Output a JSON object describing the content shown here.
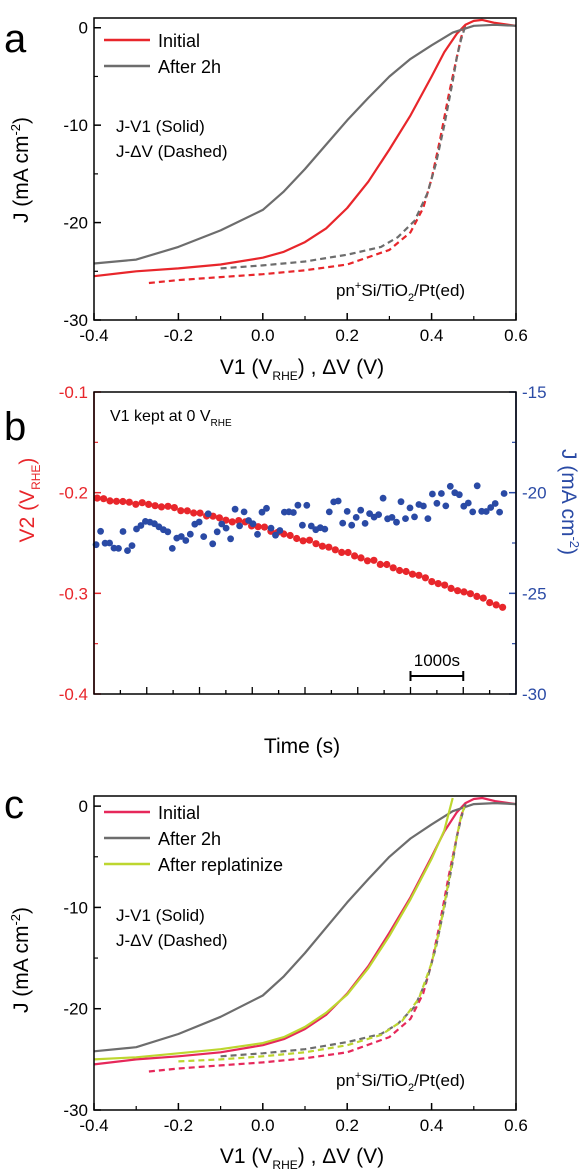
{
  "colors": {
    "red": "#e8262b",
    "gray": "#6d6d6d",
    "blue": "#2a4aa5",
    "pink": "#e6285a",
    "lime": "#bdd62f"
  },
  "chart_data": [
    {
      "type": "line",
      "panel_letter": "a",
      "xlabel": {
        "main": "V1 (V",
        "sub": "RHE",
        "tail": ") , ΔV (V)"
      },
      "ylabel": {
        "main": "J (mA cm",
        "sup": "-2",
        "tail": ")"
      },
      "xlim": [
        -0.4,
        0.6
      ],
      "ylim": [
        -30,
        1
      ],
      "xticks": [
        "-0.4",
        "-0.2",
        "0.0",
        "0.2",
        "0.4",
        "0.6"
      ],
      "yticks": [
        "-30",
        "-20",
        "-10",
        "0"
      ],
      "xtick_values": [
        -0.4,
        -0.2,
        0.0,
        0.2,
        0.4,
        0.6
      ],
      "ytick_values": [
        -30,
        -20,
        -10,
        0
      ],
      "legend": {
        "placement": "top-left",
        "entries": [
          {
            "label": "Initial",
            "color": "#e8262b"
          },
          {
            "label": "After 2h",
            "color": "#6d6d6d"
          }
        ]
      },
      "annotations": [
        "J-V1 (Solid)",
        "J-ΔV (Dashed)"
      ],
      "sample_label": {
        "main": "pn",
        "sup": "+",
        "mid": "Si/TiO",
        "sub": "2",
        "tail": "/Pt(ed)"
      },
      "series": [
        {
          "name": "Initial",
          "style": "solid",
          "color": "#e8262b",
          "x": [
            -0.4,
            -0.3,
            -0.2,
            -0.1,
            0.0,
            0.05,
            0.1,
            0.15,
            0.2,
            0.25,
            0.3,
            0.35,
            0.4,
            0.43,
            0.46,
            0.48,
            0.5,
            0.52,
            0.55,
            0.6
          ],
          "y": [
            -25.5,
            -25.0,
            -24.7,
            -24.3,
            -23.6,
            -23.0,
            -22.0,
            -20.6,
            -18.5,
            -15.8,
            -12.5,
            -9.0,
            -5.0,
            -2.5,
            -0.6,
            0.3,
            0.7,
            0.8,
            0.5,
            0.2
          ]
        },
        {
          "name": "After 2h",
          "style": "solid",
          "color": "#6d6d6d",
          "x": [
            -0.4,
            -0.3,
            -0.2,
            -0.1,
            0.0,
            0.05,
            0.1,
            0.15,
            0.2,
            0.25,
            0.3,
            0.35,
            0.4,
            0.45,
            0.5,
            0.55,
            0.6
          ],
          "y": [
            -24.2,
            -23.8,
            -22.5,
            -20.8,
            -18.7,
            -16.8,
            -14.5,
            -12.0,
            -9.5,
            -7.2,
            -5.0,
            -3.2,
            -1.8,
            -0.5,
            0.2,
            0.3,
            0.2
          ]
        },
        {
          "name": "Initial",
          "style": "dashed",
          "color": "#e8262b",
          "x": [
            -0.27,
            -0.2,
            -0.1,
            0.0,
            0.1,
            0.2,
            0.3,
            0.35,
            0.38,
            0.4,
            0.42,
            0.44,
            0.46,
            0.47,
            0.48
          ],
          "y": [
            -26.2,
            -25.9,
            -25.6,
            -25.3,
            -24.9,
            -24.3,
            -22.8,
            -21.0,
            -18.5,
            -15.5,
            -11.5,
            -7.0,
            -3.0,
            -1.0,
            0.3
          ]
        },
        {
          "name": "After 2h",
          "style": "dashed",
          "color": "#6d6d6d",
          "x": [
            -0.1,
            0.0,
            0.1,
            0.2,
            0.28,
            0.32,
            0.36,
            0.39,
            0.41,
            0.43,
            0.45,
            0.46,
            0.47,
            0.48
          ],
          "y": [
            -24.7,
            -24.4,
            -24.0,
            -23.3,
            -22.5,
            -21.5,
            -19.8,
            -17.0,
            -14.0,
            -10.0,
            -5.5,
            -3.0,
            -1.2,
            0.2
          ]
        }
      ]
    },
    {
      "type": "scatter",
      "panel_letter": "b",
      "xlabel": "Time (s)",
      "ylabel_left": {
        "main": "V2 (V",
        "sub": "RHE",
        "tail": ")"
      },
      "ylabel_right": {
        "main": "J (mA cm",
        "sup": "-2",
        "tail": ")"
      },
      "ylim_left": [
        -0.4,
        -0.1
      ],
      "ylim_right": [
        -30,
        -15
      ],
      "yticks_left": [
        "-0.4",
        "-0.3",
        "-0.2",
        "-0.1"
      ],
      "ytick_values_left": [
        -0.4,
        -0.3,
        -0.2,
        -0.1
      ],
      "yticks_right": [
        "-30",
        "-25",
        "-20",
        "-15"
      ],
      "ytick_values_right": [
        -30,
        -25,
        -20,
        -15
      ],
      "xlim": [
        0,
        8000
      ],
      "annotation": {
        "main": "V1 kept at 0 V",
        "sub": "RHE"
      },
      "scale_bar": {
        "label": "1000s",
        "from": 6000,
        "to": 7000
      },
      "series": [
        {
          "name": "V2",
          "axis": "left",
          "color": "#e8262b",
          "trend": {
            "x": [
              0,
              1500,
              3000,
              4500,
              6000,
              7000,
              7800
            ],
            "y": [
              -0.205,
              -0.215,
              -0.232,
              -0.255,
              -0.28,
              -0.298,
              -0.315
            ]
          }
        },
        {
          "name": "J",
          "axis": "right",
          "color": "#2a4aa5",
          "trend": {
            "x": [
              0,
              1500,
              3000,
              4500,
              6000,
              7000,
              7800
            ],
            "y": [
              -22.5,
              -22.0,
              -21.5,
              -21.0,
              -20.6,
              -20.3,
              -20.2
            ]
          }
        }
      ]
    },
    {
      "type": "line",
      "panel_letter": "c",
      "xlabel": {
        "main": "V1 (V",
        "sub": "RHE",
        "tail": ") , ΔV (V)"
      },
      "ylabel": {
        "main": "J (mA cm",
        "sup": "-2",
        "tail": ")"
      },
      "xlim": [
        -0.4,
        0.6
      ],
      "ylim": [
        -30,
        1
      ],
      "xticks": [
        "-0.4",
        "-0.2",
        "0.0",
        "0.2",
        "0.4",
        "0.6"
      ],
      "yticks": [
        "-30",
        "-20",
        "-10",
        "0"
      ],
      "xtick_values": [
        -0.4,
        -0.2,
        0.0,
        0.2,
        0.4,
        0.6
      ],
      "ytick_values": [
        -30,
        -20,
        -10,
        0
      ],
      "legend": {
        "placement": "top-left",
        "entries": [
          {
            "label": "Initial",
            "color": "#e6285a"
          },
          {
            "label": "After 2h",
            "color": "#6d6d6d"
          },
          {
            "label": "After replatinize",
            "color": "#bdd62f"
          }
        ]
      },
      "annotations": [
        "J-V1 (Solid)",
        "J-ΔV (Dashed)"
      ],
      "sample_label": {
        "main": "pn",
        "sup": "+",
        "mid": "Si/TiO",
        "sub": "2",
        "tail": "/Pt(ed)"
      },
      "series": [
        {
          "name": "Initial",
          "style": "solid",
          "color": "#e6285a",
          "x": [
            -0.4,
            -0.3,
            -0.2,
            -0.1,
            0.0,
            0.05,
            0.1,
            0.15,
            0.2,
            0.25,
            0.3,
            0.35,
            0.4,
            0.43,
            0.46,
            0.48,
            0.5,
            0.52,
            0.55,
            0.6
          ],
          "y": [
            -25.5,
            -25.0,
            -24.7,
            -24.3,
            -23.6,
            -23.0,
            -22.0,
            -20.6,
            -18.5,
            -15.8,
            -12.5,
            -9.0,
            -5.0,
            -2.5,
            -0.6,
            0.3,
            0.7,
            0.8,
            0.5,
            0.2
          ]
        },
        {
          "name": "After 2h",
          "style": "solid",
          "color": "#6d6d6d",
          "x": [
            -0.4,
            -0.3,
            -0.2,
            -0.1,
            0.0,
            0.05,
            0.1,
            0.15,
            0.2,
            0.25,
            0.3,
            0.35,
            0.4,
            0.45,
            0.5,
            0.55,
            0.6
          ],
          "y": [
            -24.2,
            -23.8,
            -22.5,
            -20.8,
            -18.7,
            -16.8,
            -14.5,
            -12.0,
            -9.5,
            -7.2,
            -5.0,
            -3.2,
            -1.8,
            -0.5,
            0.2,
            0.3,
            0.2
          ]
        },
        {
          "name": "After replatinize",
          "style": "solid",
          "color": "#bdd62f",
          "x": [
            -0.4,
            -0.3,
            -0.2,
            -0.1,
            0.0,
            0.05,
            0.1,
            0.15,
            0.2,
            0.25,
            0.3,
            0.35,
            0.4,
            0.43,
            0.45
          ],
          "y": [
            -25.0,
            -24.8,
            -24.4,
            -24.0,
            -23.4,
            -22.8,
            -21.8,
            -20.4,
            -18.6,
            -16.0,
            -12.8,
            -9.2,
            -5.2,
            -2.4,
            0.8
          ]
        },
        {
          "name": "Initial",
          "style": "dashed",
          "color": "#e6285a",
          "x": [
            -0.27,
            -0.2,
            -0.1,
            0.0,
            0.1,
            0.2,
            0.3,
            0.35,
            0.38,
            0.4,
            0.42,
            0.44,
            0.46,
            0.47,
            0.48
          ],
          "y": [
            -26.2,
            -25.9,
            -25.6,
            -25.3,
            -24.9,
            -24.3,
            -22.8,
            -21.0,
            -18.5,
            -15.5,
            -11.5,
            -7.0,
            -3.0,
            -1.0,
            0.3
          ]
        },
        {
          "name": "After 2h",
          "style": "dashed",
          "color": "#6d6d6d",
          "x": [
            -0.1,
            0.0,
            0.1,
            0.2,
            0.28,
            0.32,
            0.36,
            0.39,
            0.41,
            0.43,
            0.45,
            0.46,
            0.47,
            0.48
          ],
          "y": [
            -24.7,
            -24.4,
            -24.0,
            -23.3,
            -22.5,
            -21.5,
            -19.8,
            -17.0,
            -14.0,
            -10.0,
            -5.5,
            -3.0,
            -1.2,
            0.2
          ]
        },
        {
          "name": "After replatinize",
          "style": "dashed",
          "color": "#bdd62f",
          "x": [
            -0.2,
            -0.1,
            0.0,
            0.1,
            0.2,
            0.28,
            0.33,
            0.37,
            0.4,
            0.42,
            0.44,
            0.46,
            0.47,
            0.48
          ],
          "y": [
            -25.2,
            -25.0,
            -24.7,
            -24.3,
            -23.6,
            -22.6,
            -21.2,
            -19.0,
            -15.5,
            -12.0,
            -7.5,
            -3.0,
            -1.0,
            0.2
          ]
        }
      ]
    }
  ]
}
